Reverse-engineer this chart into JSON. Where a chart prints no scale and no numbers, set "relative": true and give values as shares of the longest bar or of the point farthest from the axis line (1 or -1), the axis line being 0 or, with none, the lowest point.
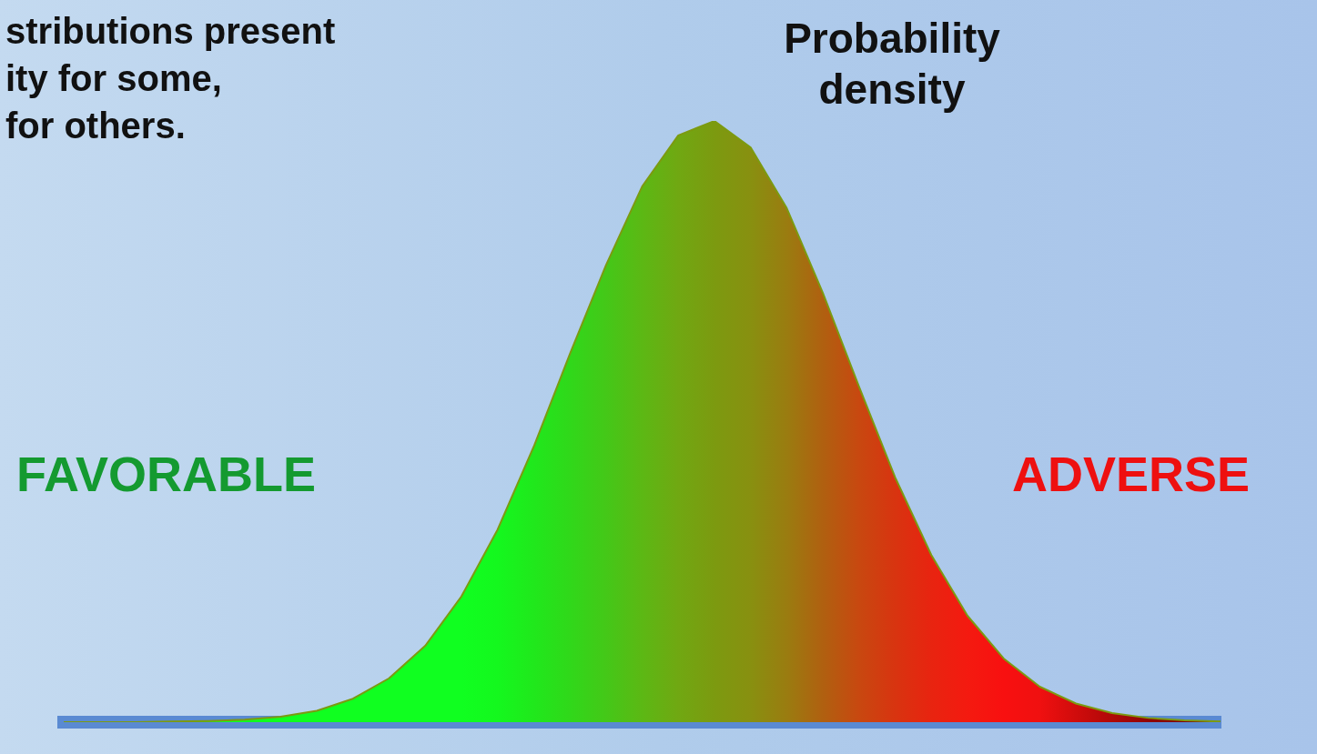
{
  "chart_data": {
    "type": "area",
    "relative": true,
    "ylabel": "Probability density",
    "legend": false,
    "grid": false,
    "annotations": [
      "stributions present\nity for some,\n for others.",
      "FAVORABLE",
      "ADVERSE"
    ],
    "categories": [
      null,
      null,
      null,
      null,
      null,
      null,
      null,
      null,
      null,
      null,
      null,
      null,
      null,
      null,
      null,
      null,
      null,
      null,
      null,
      null,
      null,
      null,
      null,
      null,
      null,
      null,
      null,
      null,
      null,
      null,
      null,
      null,
      null
    ],
    "series": [
      {
        "color": "#7c9a10",
        "values": [
          0,
          0,
          0,
          0.001,
          0.002,
          0.004,
          0.009,
          0.019,
          0.039,
          0.073,
          0.127,
          0.209,
          0.32,
          0.458,
          0.612,
          0.76,
          0.891,
          0.976,
          1,
          0.956,
          0.855,
          0.714,
          0.558,
          0.407,
          0.278,
          0.177,
          0.106,
          0.059,
          0.031,
          0.015,
          0.007,
          0.003,
          0.001
        ],
        "colors": [
          "#10ff20",
          "#10ff20",
          "#10ff20",
          "#10ff20",
          "#10ff20",
          "#10ff20",
          "#10ff20",
          "#10ff20",
          "#10ff20",
          "#10ff20",
          "#10ff20",
          "#10ff20",
          "#14f81e",
          "#20e81c",
          "#30d81a",
          "#44c818",
          "#5cb814",
          "#70a812",
          "#7c9a10",
          "#889010",
          "#9a7c10",
          "#b06010",
          "#c84810",
          "#d83410",
          "#e82410",
          "#f41a10",
          "#f81010",
          "#f01010",
          "#d00c0c",
          "#b00808",
          "#900404",
          "#800000",
          "#800000"
        ]
      }
    ]
  }
}
